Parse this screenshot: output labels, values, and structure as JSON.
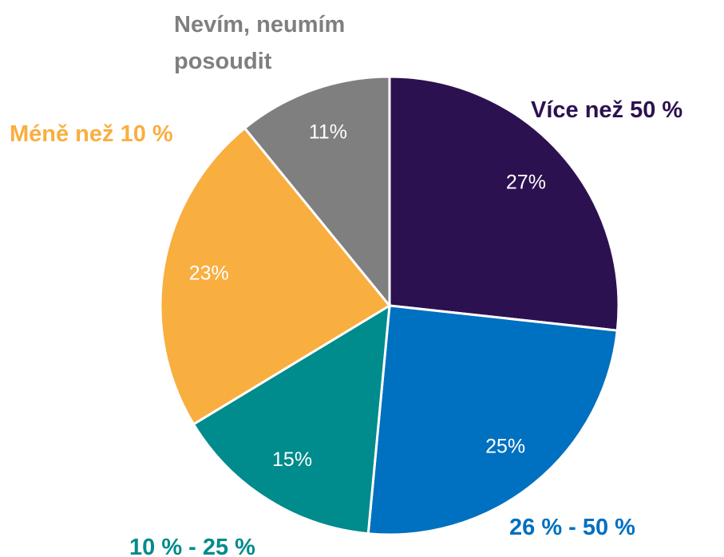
{
  "chart_data": {
    "type": "pie",
    "categories": [
      "Více než 50 %",
      "26 % - 50 %",
      "10 % - 25 %",
      "Méně než 10 %",
      "Nevím, neumím posoudit"
    ],
    "values": [
      27,
      25,
      15,
      23,
      11
    ],
    "value_labels": [
      "27%",
      "25%",
      "15%",
      "23%",
      "11%"
    ],
    "colors": [
      "#2c1150",
      "#0070c0",
      "#008b8c",
      "#f9ae40",
      "#7f7f7f"
    ]
  }
}
